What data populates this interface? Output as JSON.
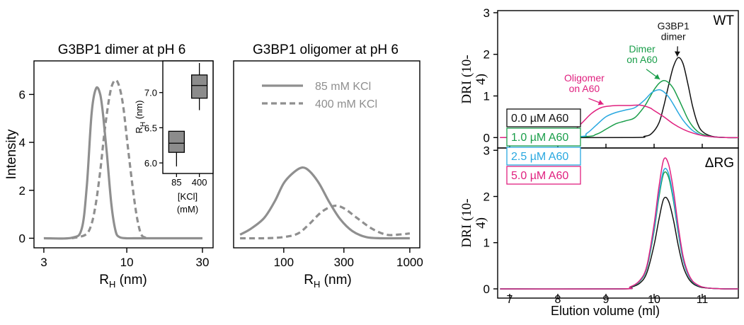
{
  "colors": {
    "grey": "#8f8f8f",
    "inset_box": "#8c8c8c",
    "black": "#111111",
    "green": "#1a9e4a",
    "blue": "#29a8e0",
    "magenta": "#e0207f"
  },
  "chart_data": [
    {
      "type": "line",
      "title": "G3BP1 dimer at pH 6",
      "xlabel": "RH (nm)",
      "ylabel": "Intensity",
      "xscale": "log",
      "xlim": [
        2.6,
        35
      ],
      "ylim": [
        -0.4,
        7.4
      ],
      "xticks": [
        3,
        10,
        30
      ],
      "xticklabels": [
        "3",
        "10",
        "30"
      ],
      "yticks": [
        0,
        2,
        4,
        6
      ],
      "yticklabels": [
        "0",
        "2",
        "4",
        "6"
      ],
      "series": [
        {
          "name": "85 mM KCl",
          "style": "solid",
          "x": [
            3.0,
            4.5,
            5.2,
            5.6,
            6.0,
            6.4,
            6.8,
            7.1,
            7.5,
            8.0,
            8.5,
            9.0,
            10.0,
            11.0,
            13.0,
            20.0,
            30.0
          ],
          "y": [
            0.0,
            0.02,
            0.4,
            2.2,
            5.2,
            6.25,
            6.0,
            5.1,
            3.5,
            1.4,
            0.3,
            0.05,
            0.0,
            0.0,
            0.0,
            0.0,
            0.0
          ]
        },
        {
          "name": "400 mM KCl",
          "style": "dashed",
          "x": [
            4.5,
            5.5,
            6.0,
            6.4,
            6.8,
            7.2,
            7.6,
            8.0,
            8.5,
            9.0,
            9.5,
            10.0,
            10.5,
            11.0,
            11.5,
            12.0,
            12.5,
            13.5
          ],
          "y": [
            0.0,
            0.15,
            0.6,
            1.5,
            2.8,
            4.3,
            5.5,
            6.3,
            6.6,
            6.3,
            5.5,
            4.2,
            3.0,
            1.9,
            1.0,
            0.4,
            0.1,
            0.0
          ]
        }
      ],
      "legend_location": "none"
    },
    {
      "type": "box",
      "inset": true,
      "xlabel": "[KCl] (mM)",
      "ylabel": "RH (nm)",
      "xlim": [
        0.4,
        2.6
      ],
      "ylim": [
        5.85,
        7.45
      ],
      "categories": [
        "85",
        "400"
      ],
      "yticks": [
        6.0,
        6.5,
        7.0
      ],
      "yticklabels": [
        "6.0",
        "6.5",
        "7.0"
      ],
      "boxes": [
        {
          "label": "85",
          "min": 5.95,
          "q1": 6.15,
          "median": 6.28,
          "q3": 6.45,
          "max": 6.45
        },
        {
          "label": "400",
          "min": 6.75,
          "q1": 6.92,
          "median": 7.1,
          "q3": 7.25,
          "max": 7.42
        }
      ]
    },
    {
      "type": "line",
      "title": "G3BP1 oligomer at pH 6",
      "xlabel": "RH (nm)",
      "ylabel": "",
      "xscale": "log",
      "xlim": [
        40,
        1200
      ],
      "ylim": [
        -0.4,
        7.4
      ],
      "xticks": [
        100,
        300,
        1000
      ],
      "xticklabels": [
        "100",
        "300",
        "1000"
      ],
      "series": [
        {
          "name": "85 mM KCl",
          "style": "solid",
          "x": [
            45,
            55,
            70,
            85,
            100,
            120,
            140,
            160,
            190,
            230,
            280,
            350,
            450,
            600,
            800,
            1000
          ],
          "y": [
            0.15,
            0.4,
            0.85,
            1.55,
            2.3,
            2.75,
            2.95,
            2.8,
            2.3,
            1.5,
            0.8,
            0.3,
            0.05,
            0.0,
            0.0,
            0.0
          ]
        },
        {
          "name": "400 mM KCl",
          "style": "dashed",
          "x": [
            45,
            70,
            100,
            130,
            160,
            200,
            250,
            300,
            380,
            500,
            650,
            800,
            1000
          ],
          "y": [
            0.0,
            0.0,
            0.05,
            0.2,
            0.6,
            1.1,
            1.35,
            1.25,
            0.85,
            0.4,
            0.15,
            0.15,
            0.2
          ]
        }
      ],
      "legend": [
        "85 mM KCl",
        "400 mM KCl"
      ],
      "legend_location": "top"
    },
    {
      "type": "line",
      "title": "",
      "panel_label": "WT",
      "xlabel": "",
      "ylabel": "DRI (10-4)",
      "xlim": [
        6.75,
        11.75
      ],
      "ylim": [
        -0.25,
        3.05
      ],
      "yticks": [
        0,
        1,
        2,
        3
      ],
      "yticklabels": [
        "0",
        "1",
        "2",
        "3"
      ],
      "series": [
        {
          "name": "0.0 µM A60",
          "color": "#111111",
          "x": [
            6.8,
            9.5,
            9.8,
            9.95,
            10.1,
            10.2,
            10.3,
            10.4,
            10.5,
            10.6,
            10.7,
            10.8,
            10.9,
            11.0,
            11.2,
            11.5,
            11.75
          ],
          "y": [
            0.0,
            0.0,
            0.03,
            0.1,
            0.35,
            0.75,
            1.25,
            1.7,
            1.92,
            1.78,
            1.3,
            0.75,
            0.35,
            0.15,
            0.03,
            0.0,
            0.0
          ]
        },
        {
          "name": "1.0 µM A60",
          "color": "#1a9e4a",
          "x": [
            6.8,
            8.5,
            8.8,
            9.0,
            9.2,
            9.4,
            9.6,
            9.8,
            9.9,
            10.0,
            10.1,
            10.2,
            10.3,
            10.4,
            10.5,
            10.6,
            10.7,
            10.8,
            10.9,
            11.0,
            11.2,
            11.5,
            11.75
          ],
          "y": [
            0.0,
            0.02,
            0.08,
            0.2,
            0.33,
            0.4,
            0.48,
            0.75,
            0.95,
            1.15,
            1.3,
            1.37,
            1.32,
            1.18,
            0.95,
            0.7,
            0.45,
            0.27,
            0.15,
            0.08,
            0.02,
            0.0,
            0.0
          ]
        },
        {
          "name": "2.5 µM A60",
          "color": "#29a8e0",
          "x": [
            6.8,
            8.4,
            8.6,
            8.8,
            9.0,
            9.2,
            9.4,
            9.6,
            9.8,
            9.95,
            10.1,
            10.2,
            10.3,
            10.4,
            10.5,
            10.6,
            10.7,
            10.8,
            10.9,
            11.0,
            11.2,
            11.5,
            11.75
          ],
          "y": [
            0.0,
            0.02,
            0.1,
            0.3,
            0.5,
            0.6,
            0.66,
            0.72,
            0.9,
            1.08,
            1.15,
            1.1,
            0.98,
            0.8,
            0.6,
            0.42,
            0.28,
            0.17,
            0.1,
            0.05,
            0.02,
            0.0,
            0.0
          ]
        },
        {
          "name": "5.0 µM A60",
          "color": "#e0207f",
          "x": [
            6.8,
            8.1,
            8.3,
            8.5,
            8.7,
            8.9,
            9.1,
            9.3,
            9.5,
            9.7,
            9.9,
            10.0,
            10.2,
            10.4,
            10.6,
            10.8,
            11.0,
            11.2,
            11.5,
            11.75
          ],
          "y": [
            0.0,
            0.03,
            0.13,
            0.35,
            0.58,
            0.72,
            0.76,
            0.77,
            0.77,
            0.78,
            0.72,
            0.65,
            0.5,
            0.33,
            0.2,
            0.11,
            0.05,
            0.02,
            0.0,
            0.0
          ]
        }
      ],
      "annotations": [
        {
          "text": [
            "G3BP1",
            "dimer"
          ],
          "color": "#111111",
          "x": 10.4,
          "y": 2.6,
          "arrow_to": [
            10.48,
            1.95
          ]
        },
        {
          "text": [
            "Dimer",
            "on A60"
          ],
          "color": "#1a9e4a",
          "x": 9.75,
          "y": 2.05,
          "arrow_to": [
            10.12,
            1.4
          ]
        },
        {
          "text": [
            "Oligomer",
            "on A60"
          ],
          "color": "#e0207f",
          "x": 8.55,
          "y": 1.35,
          "arrow_to": [
            8.95,
            0.8
          ]
        }
      ],
      "legend": [
        "0.0 µM A60",
        "1.0 µM A60",
        "2.5 µM A60",
        "5.0 µM A60"
      ],
      "legend_location": "left-center"
    },
    {
      "type": "line",
      "title": "",
      "panel_label": "ΔRG",
      "xlabel": "Elution volume (ml)",
      "ylabel": "DRI (10-4)",
      "xlim": [
        6.75,
        11.75
      ],
      "ylim": [
        -0.2,
        3.05
      ],
      "xticks": [
        7,
        8,
        9,
        10,
        11
      ],
      "xticklabels": [
        "7",
        "8",
        "9",
        "10",
        "11"
      ],
      "yticks": [
        0,
        1,
        2,
        3
      ],
      "yticklabels": [
        "0",
        "1",
        "2",
        "3"
      ],
      "series": [
        {
          "name": "0.0 µM A60",
          "color": "#111111",
          "x": [
            6.8,
            9.3,
            9.5,
            9.7,
            9.85,
            10.0,
            10.1,
            10.2,
            10.3,
            10.4,
            10.5,
            10.6,
            10.7,
            10.8,
            10.9,
            11.0,
            11.2,
            11.5,
            11.75
          ],
          "y": [
            0.0,
            0.0,
            0.03,
            0.12,
            0.35,
            0.95,
            1.5,
            1.95,
            1.9,
            1.5,
            0.95,
            0.5,
            0.25,
            0.12,
            0.06,
            0.03,
            0.01,
            0.0,
            0.0
          ]
        },
        {
          "name": "1.0 µM A60",
          "color": "#1a9e4a",
          "x": [
            6.8,
            9.3,
            9.5,
            9.7,
            9.85,
            10.0,
            10.1,
            10.2,
            10.3,
            10.4,
            10.5,
            10.6,
            10.7,
            10.8,
            10.9,
            11.0,
            11.2,
            11.5,
            11.75
          ],
          "y": [
            0.0,
            0.0,
            0.04,
            0.16,
            0.45,
            1.25,
            1.98,
            2.5,
            2.42,
            1.92,
            1.22,
            0.64,
            0.32,
            0.15,
            0.08,
            0.04,
            0.01,
            0.0,
            0.0
          ]
        },
        {
          "name": "2.5 µM A60",
          "color": "#29a8e0",
          "x": [
            6.8,
            9.3,
            9.5,
            9.7,
            9.85,
            10.0,
            10.1,
            10.2,
            10.3,
            10.4,
            10.5,
            10.6,
            10.7,
            10.8,
            10.9,
            11.0,
            11.2,
            11.5,
            11.75
          ],
          "y": [
            0.0,
            0.0,
            0.04,
            0.17,
            0.47,
            1.3,
            2.05,
            2.57,
            2.5,
            1.98,
            1.26,
            0.66,
            0.33,
            0.16,
            0.08,
            0.04,
            0.01,
            0.0,
            0.0
          ]
        },
        {
          "name": "5.0 µM A60",
          "color": "#e0207f",
          "x": [
            6.8,
            9.3,
            9.5,
            9.7,
            9.85,
            10.0,
            10.1,
            10.2,
            10.3,
            10.4,
            10.5,
            10.6,
            10.7,
            10.8,
            10.9,
            11.0,
            11.2,
            11.5,
            11.75
          ],
          "y": [
            0.0,
            0.0,
            0.04,
            0.18,
            0.5,
            1.4,
            2.2,
            2.8,
            2.7,
            2.15,
            1.37,
            0.72,
            0.36,
            0.17,
            0.09,
            0.04,
            0.01,
            0.0,
            0.0
          ]
        }
      ]
    }
  ]
}
